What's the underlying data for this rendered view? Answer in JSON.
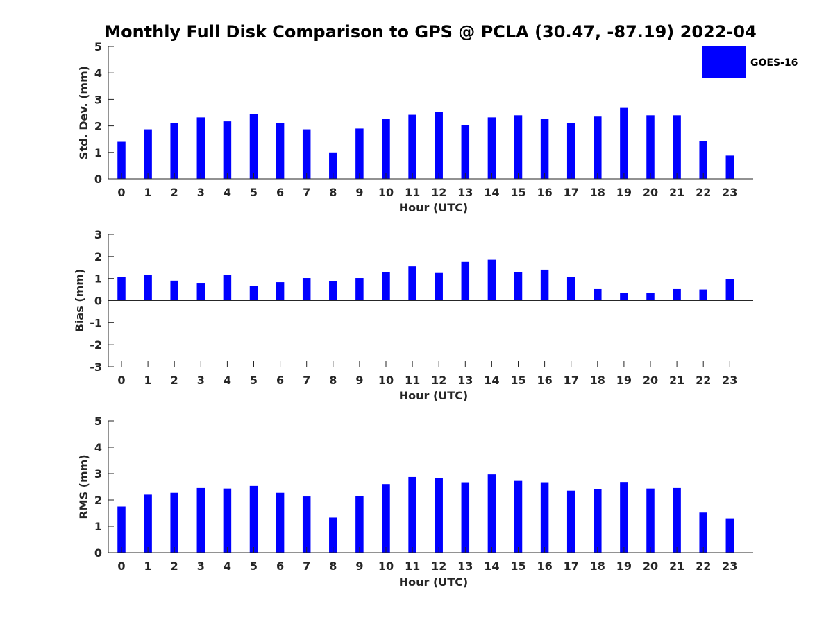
{
  "title": "Monthly Full Disk Comparison to GPS @ PCLA (30.47, -87.19) 2022-04",
  "legend": {
    "label": "GOES-16",
    "color": "#0000ff",
    "position": "top-right"
  },
  "chart_data": [
    {
      "type": "bar",
      "xlabel": "Hour (UTC)",
      "ylabel": "Std. Dev. (mm)",
      "ylim": [
        0,
        5
      ],
      "yticks": [
        "0",
        "1",
        "2",
        "3",
        "4",
        "5"
      ],
      "categories": [
        "0",
        "1",
        "2",
        "3",
        "4",
        "5",
        "6",
        "7",
        "8",
        "9",
        "10",
        "11",
        "12",
        "13",
        "14",
        "15",
        "16",
        "17",
        "18",
        "19",
        "20",
        "21",
        "22",
        "23"
      ],
      "series": [
        {
          "name": "GOES-16",
          "values": [
            1.4,
            1.87,
            2.1,
            2.32,
            2.17,
            2.45,
            2.1,
            1.87,
            1.0,
            1.9,
            2.27,
            2.42,
            2.53,
            2.02,
            2.32,
            2.4,
            2.27,
            2.1,
            2.35,
            2.68,
            2.4,
            2.4,
            1.43,
            0.88
          ]
        }
      ],
      "grid": false
    },
    {
      "type": "bar",
      "xlabel": "Hour (UTC)",
      "ylabel": "Bias (mm)",
      "ylim": [
        -3,
        3
      ],
      "yticks": [
        "-3",
        "-2",
        "-1",
        "0",
        "1",
        "2",
        "3"
      ],
      "categories": [
        "0",
        "1",
        "2",
        "3",
        "4",
        "5",
        "6",
        "7",
        "8",
        "9",
        "10",
        "11",
        "12",
        "13",
        "14",
        "15",
        "16",
        "17",
        "18",
        "19",
        "20",
        "21",
        "22",
        "23"
      ],
      "series": [
        {
          "name": "GOES-16",
          "values": [
            1.08,
            1.15,
            0.9,
            0.8,
            1.15,
            0.65,
            0.83,
            1.02,
            0.88,
            1.02,
            1.3,
            1.55,
            1.25,
            1.75,
            1.85,
            1.3,
            1.4,
            1.08,
            0.52,
            0.35,
            0.35,
            0.52,
            0.5,
            0.97
          ]
        }
      ],
      "grid": false
    },
    {
      "type": "bar",
      "xlabel": "Hour (UTC)",
      "ylabel": "RMS (mm)",
      "ylim": [
        0,
        5
      ],
      "yticks": [
        "0",
        "1",
        "2",
        "3",
        "4",
        "5"
      ],
      "categories": [
        "0",
        "1",
        "2",
        "3",
        "4",
        "5",
        "6",
        "7",
        "8",
        "9",
        "10",
        "11",
        "12",
        "13",
        "14",
        "15",
        "16",
        "17",
        "18",
        "19",
        "20",
        "21",
        "22",
        "23"
      ],
      "series": [
        {
          "name": "GOES-16",
          "values": [
            1.75,
            2.2,
            2.27,
            2.45,
            2.43,
            2.53,
            2.27,
            2.13,
            1.33,
            2.15,
            2.6,
            2.87,
            2.82,
            2.67,
            2.97,
            2.72,
            2.67,
            2.35,
            2.4,
            2.68,
            2.43,
            2.45,
            1.52,
            1.3
          ]
        }
      ],
      "grid": false
    }
  ]
}
